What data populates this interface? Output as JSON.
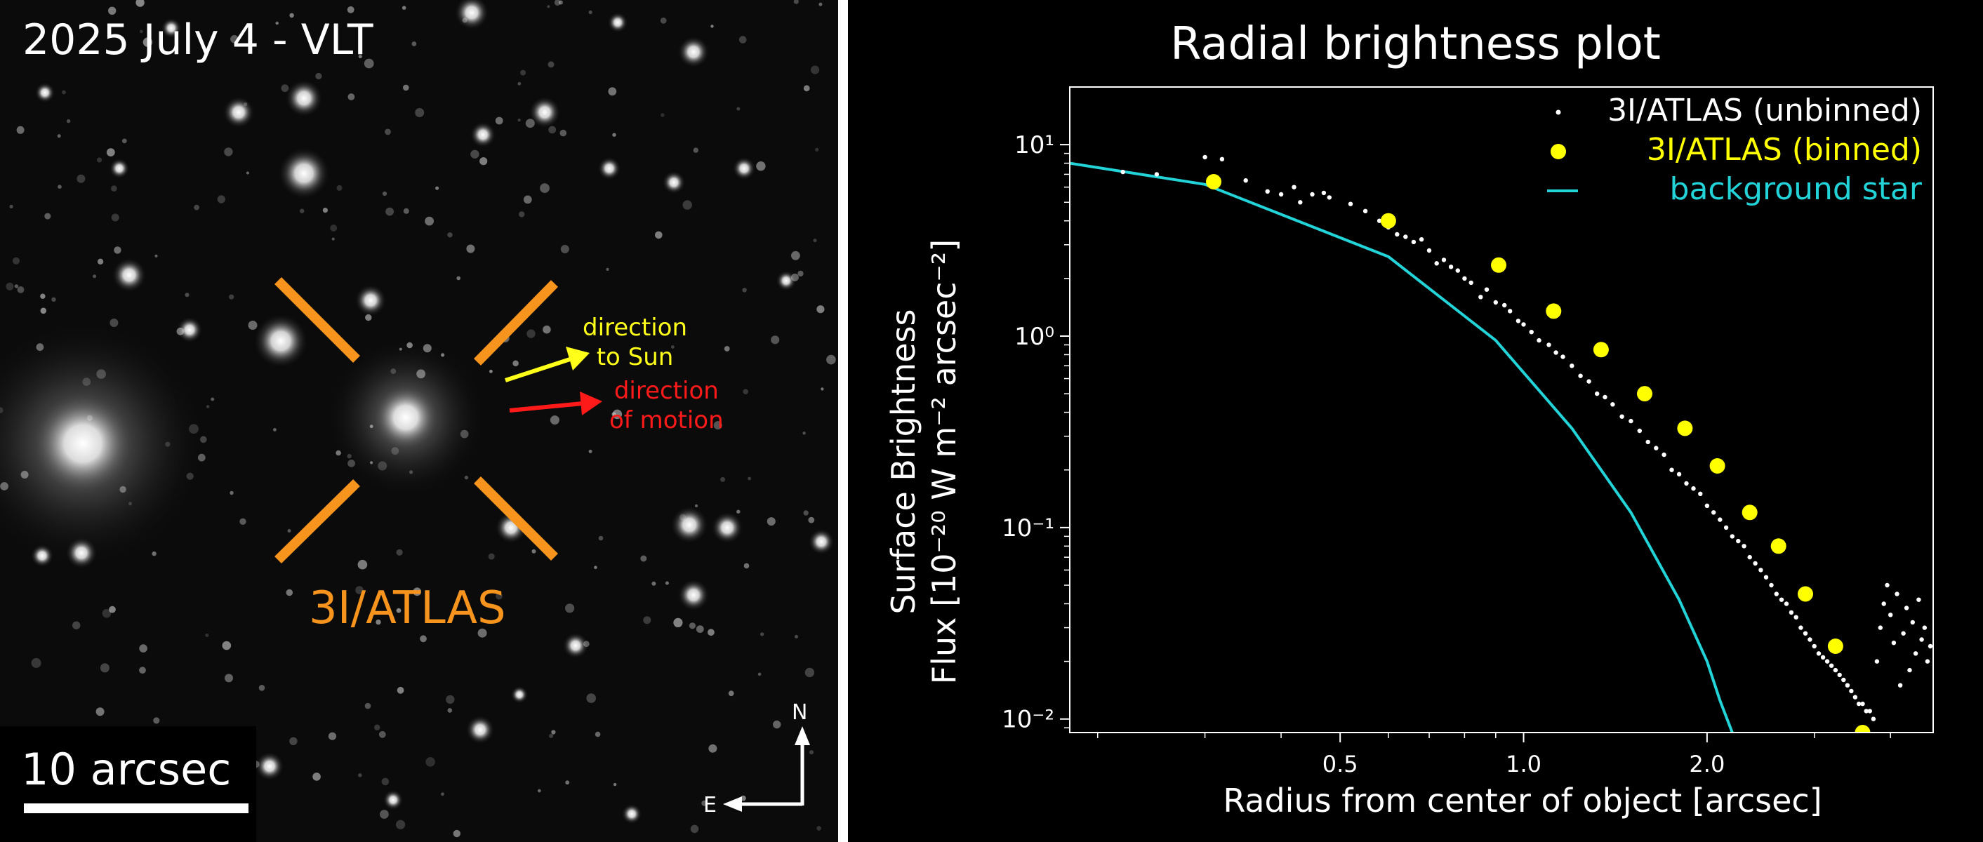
{
  "left_panel": {
    "title": "2025 July 4 - VLT",
    "target_label": "3I/ATLAS",
    "sun_arrow_label_line1": "direction",
    "sun_arrow_label_line2": "to Sun",
    "motion_arrow_label_line1": "direction",
    "motion_arrow_label_line2": "of motion",
    "scale_label": "10 arcsec",
    "compass_n": "N",
    "compass_e": "E",
    "colors": {
      "target": "#f7941d",
      "sun_arrow": "#ffff1a",
      "motion_arrow": "#ff1a1a"
    }
  },
  "chart_data": {
    "type": "scatter",
    "title": "Radial brightness plot",
    "xlabel": "Radius from center of object [arcsec]",
    "ylabel_line1": "Surface Brightness",
    "ylabel_line2": "Flux [10⁻²⁰ W m⁻² arcsec⁻²]",
    "x_scale": "log",
    "y_scale": "log",
    "xlim": [
      0.18,
      4.7
    ],
    "ylim": [
      0.0085,
      20
    ],
    "x_ticks": [
      0.5,
      1.0,
      2.0
    ],
    "x_tick_labels": [
      "0.5",
      "1.0",
      "2.0"
    ],
    "y_ticks": [
      0.01,
      0.1,
      1,
      10
    ],
    "y_tick_labels": [
      "10⁻²",
      "10⁻¹",
      "10⁰",
      "10¹"
    ],
    "grid": false,
    "legend_position": "top-right",
    "series": [
      {
        "name": "3I/ATLAS (unbinned)",
        "style": "small white dots",
        "color": "#ffffff",
        "x": [
          0.22,
          0.25,
          0.3,
          0.32,
          0.35,
          0.38,
          0.4,
          0.42,
          0.43,
          0.45,
          0.47,
          0.48,
          0.52,
          0.55,
          0.58,
          0.6,
          0.62,
          0.64,
          0.66,
          0.68,
          0.7,
          0.72,
          0.74,
          0.76,
          0.78,
          0.8,
          0.82,
          0.85,
          0.87,
          0.9,
          0.93,
          0.95,
          0.98,
          1.0,
          1.03,
          1.06,
          1.1,
          1.13,
          1.16,
          1.2,
          1.24,
          1.28,
          1.32,
          1.36,
          1.4,
          1.45,
          1.5,
          1.55,
          1.6,
          1.65,
          1.7,
          1.75,
          1.8,
          1.85,
          1.9,
          1.95,
          2.0,
          2.05,
          2.1,
          2.15,
          2.2,
          2.25,
          2.3,
          2.35,
          2.4,
          2.45,
          2.5,
          2.55,
          2.6,
          2.65,
          2.7,
          2.75,
          2.8,
          2.85,
          2.9,
          2.95,
          3.0,
          3.05,
          3.1,
          3.15,
          3.2,
          3.25,
          3.3,
          3.35,
          3.4,
          3.45,
          3.5,
          3.55,
          3.6,
          3.65,
          3.7,
          3.75,
          3.8,
          3.85,
          3.9,
          3.95,
          4.0,
          4.05,
          4.1,
          4.15,
          4.2,
          4.25,
          4.3,
          4.35,
          4.4,
          4.45,
          4.5,
          4.55,
          4.6,
          4.65
        ],
        "y": [
          7.2,
          7.0,
          8.6,
          8.4,
          6.5,
          5.7,
          5.5,
          6.0,
          5.0,
          5.5,
          5.6,
          5.3,
          4.9,
          4.5,
          4.0,
          3.7,
          3.4,
          3.3,
          3.1,
          3.2,
          2.8,
          2.4,
          2.5,
          2.3,
          2.2,
          2.0,
          1.9,
          1.6,
          1.75,
          1.5,
          1.45,
          1.35,
          1.2,
          1.15,
          1.05,
          0.95,
          0.9,
          0.82,
          0.78,
          0.7,
          0.62,
          0.58,
          0.5,
          0.48,
          0.44,
          0.38,
          0.36,
          0.32,
          0.28,
          0.26,
          0.24,
          0.2,
          0.19,
          0.17,
          0.16,
          0.15,
          0.13,
          0.12,
          0.11,
          0.1,
          0.09,
          0.085,
          0.08,
          0.07,
          0.065,
          0.06,
          0.055,
          0.05,
          0.045,
          0.042,
          0.04,
          0.036,
          0.034,
          0.03,
          0.028,
          0.026,
          0.024,
          0.022,
          0.021,
          0.02,
          0.019,
          0.018,
          0.017,
          0.016,
          0.015,
          0.014,
          0.013,
          0.012,
          0.012,
          0.011,
          0.011,
          0.01,
          0.02,
          0.03,
          0.04,
          0.05,
          0.035,
          0.025,
          0.045,
          0.015,
          0.028,
          0.038,
          0.018,
          0.032,
          0.022,
          0.042,
          0.026,
          0.03,
          0.02,
          0.024
        ]
      },
      {
        "name": "3I/ATLAS (binned)",
        "style": "large yellow dots",
        "color": "#ffff00",
        "x": [
          0.31,
          0.6,
          0.91,
          1.12,
          1.34,
          1.58,
          1.84,
          2.08,
          2.35,
          2.62,
          2.9,
          3.25,
          3.6
        ],
        "y": [
          6.4,
          4.0,
          2.35,
          1.35,
          0.85,
          0.5,
          0.33,
          0.21,
          0.12,
          0.08,
          0.045,
          0.024,
          0.0085
        ]
      },
      {
        "name": "background star",
        "style": "line",
        "color": "#22d3d8",
        "x": [
          0.18,
          0.3,
          0.6,
          0.9,
          1.2,
          1.5,
          1.8,
          2.0,
          2.1,
          2.2
        ],
        "y": [
          8.0,
          6.2,
          2.6,
          0.95,
          0.33,
          0.12,
          0.042,
          0.02,
          0.0125,
          0.0085
        ]
      }
    ]
  }
}
